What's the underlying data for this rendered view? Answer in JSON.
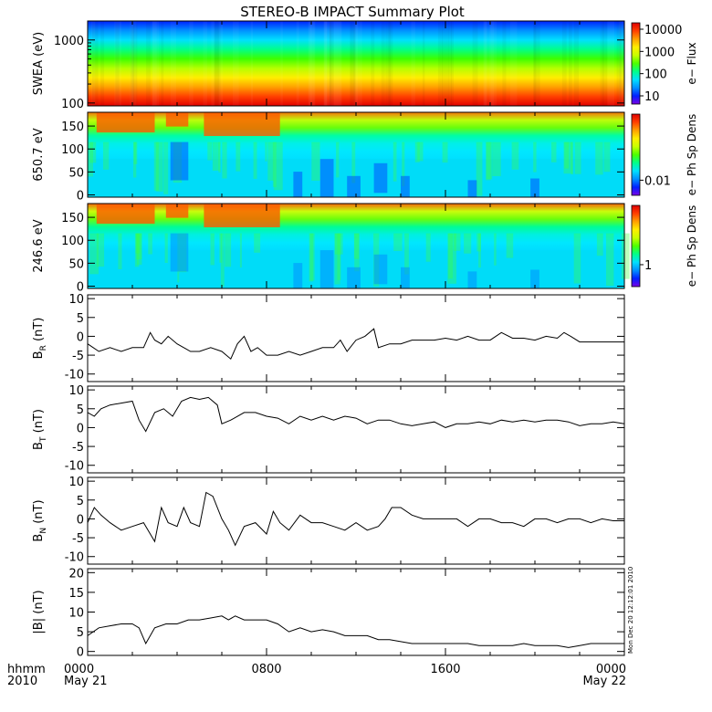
{
  "title": "STEREO-B IMPACT Summary Plot",
  "colors": {
    "colorbar": [
      "#7a00e6",
      "#0020ff",
      "#0090ff",
      "#00e0ff",
      "#00ff8a",
      "#4cff00",
      "#c8ff00",
      "#ffee00",
      "#ffa000",
      "#ff4000",
      "#e00000"
    ],
    "line": "#000000",
    "axis": "#000000"
  },
  "time_axis": {
    "title_line1": "hhmm",
    "title_line2": "2010",
    "ticks": [
      {
        "hour": 0,
        "label": "0000",
        "sublabel": "May 21"
      },
      {
        "hour": 8,
        "label": "0800",
        "sublabel": ""
      },
      {
        "hour": 16,
        "label": "1600",
        "sublabel": ""
      },
      {
        "hour": 24,
        "label": "0000",
        "sublabel": "May 22"
      }
    ],
    "range_hours": [
      0,
      24
    ]
  },
  "timestamp": "Mon Dec 20 12:12:01 2010",
  "chart_data": [
    {
      "type": "heatmap",
      "ylabel": "SWEA (eV)",
      "yscale": "log",
      "ylim": [
        90,
        2000
      ],
      "yticks": [
        "100",
        "1000"
      ],
      "colorbar_label": "e− Flux",
      "colorbar_ticks": [
        "10000",
        "1000",
        "100",
        "10"
      ]
    },
    {
      "type": "heatmap",
      "ylabel": "650.7 eV",
      "ylim": [
        -5,
        180
      ],
      "yticks": [
        "0",
        "50",
        "100",
        "150"
      ],
      "colorbar_label": "e− Ph Sp Dens",
      "colorbar_ticks": [
        "0.01"
      ]
    },
    {
      "type": "heatmap",
      "ylabel": "246.6 eV",
      "ylim": [
        -5,
        180
      ],
      "yticks": [
        "0",
        "50",
        "100",
        "150"
      ],
      "colorbar_label": "e− Ph Sp Dens",
      "colorbar_ticks": [
        "1"
      ]
    },
    {
      "type": "line",
      "ylabel": "B",
      "ylabel_sub": "R",
      "ylabel_unit": " (nT)",
      "ylim": [
        -12,
        11
      ],
      "yticks": [
        "10",
        "5",
        "0",
        "-5",
        "-10"
      ],
      "x": [
        0,
        0.5,
        1,
        1.5,
        2,
        2.5,
        2.8,
        3,
        3.3,
        3.6,
        4,
        4.3,
        4.6,
        5,
        5.5,
        6,
        6.4,
        6.7,
        7,
        7.3,
        7.6,
        8,
        8.5,
        9,
        9.5,
        10,
        10.5,
        11,
        11.3,
        11.6,
        12,
        12.4,
        12.8,
        13,
        13.5,
        14,
        14.5,
        15,
        15.5,
        16,
        16.5,
        17,
        17.5,
        18,
        18.5,
        19,
        19.5,
        20,
        20.5,
        21,
        21.3,
        21.6,
        22,
        22.5,
        23,
        23.5,
        24
      ],
      "y": [
        -2,
        -4,
        -3,
        -4,
        -3,
        -3,
        1,
        -1,
        -2,
        0,
        -2,
        -3,
        -4,
        -4,
        -3,
        -4,
        -6,
        -2,
        0,
        -4,
        -3,
        -5,
        -5,
        -4,
        -5,
        -4,
        -3,
        -3,
        -1,
        -4,
        -1,
        0,
        2,
        -3,
        -2,
        -2,
        -1,
        -1,
        -1,
        -0.5,
        -1,
        0,
        -1,
        -1,
        1,
        -0.5,
        -0.5,
        -1,
        0,
        -0.5,
        1,
        0,
        -1.5,
        -1.5,
        -1.5,
        -1.5,
        -1.5
      ]
    },
    {
      "type": "line",
      "ylabel": "B",
      "ylabel_sub": "T",
      "ylabel_unit": " (nT)",
      "ylim": [
        -12,
        11
      ],
      "yticks": [
        "10",
        "5",
        "0",
        "-5",
        "-10"
      ],
      "x": [
        0,
        0.3,
        0.6,
        1,
        1.5,
        2,
        2.3,
        2.6,
        3,
        3.4,
        3.8,
        4.2,
        4.6,
        5,
        5.4,
        5.8,
        6,
        6.4,
        7,
        7.5,
        8,
        8.5,
        9,
        9.5,
        10,
        10.5,
        11,
        11.5,
        12,
        12.5,
        13,
        13.5,
        14,
        14.5,
        15,
        15.5,
        16,
        16.5,
        17,
        17.5,
        18,
        18.5,
        19,
        19.5,
        20,
        20.5,
        21,
        21.5,
        22,
        22.5,
        23,
        23.5,
        24
      ],
      "y": [
        4,
        3,
        5,
        6,
        6.5,
        7,
        2,
        -1,
        4,
        5,
        3,
        7,
        8,
        7.5,
        8,
        6,
        1,
        2,
        4,
        4,
        3,
        2.5,
        1,
        3,
        2,
        3,
        2,
        3,
        2.5,
        1,
        2,
        2,
        1,
        0.5,
        1,
        1.5,
        0,
        1,
        1,
        1.5,
        1,
        2,
        1.5,
        2,
        1.5,
        2,
        2,
        1.5,
        0.5,
        1,
        1,
        1.5,
        1
      ]
    },
    {
      "type": "line",
      "ylabel": "B",
      "ylabel_sub": "N",
      "ylabel_unit": " (nT)",
      "ylim": [
        -12,
        11
      ],
      "yticks": [
        "10",
        "5",
        "0",
        "-5",
        "-10"
      ],
      "x": [
        0,
        0.3,
        0.6,
        1,
        1.5,
        2,
        2.5,
        3,
        3.3,
        3.6,
        4,
        4.3,
        4.6,
        5,
        5.3,
        5.6,
        6,
        6.3,
        6.6,
        7,
        7.5,
        8,
        8.3,
        8.6,
        9,
        9.5,
        10,
        10.5,
        11,
        11.5,
        12,
        12.5,
        13,
        13.3,
        13.6,
        14,
        14.5,
        15,
        15.5,
        16,
        16.5,
        17,
        17.5,
        18,
        18.5,
        19,
        19.5,
        20,
        20.5,
        21,
        21.5,
        22,
        22.5,
        23,
        23.5,
        24
      ],
      "y": [
        -1,
        3,
        1,
        -1,
        -3,
        -2,
        -1,
        -6,
        3,
        -1,
        -2,
        3,
        -1,
        -2,
        7,
        6,
        0,
        -3,
        -7,
        -2,
        -1,
        -4,
        2,
        -1,
        -3,
        1,
        -1,
        -1,
        -2,
        -3,
        -1,
        -3,
        -2,
        0,
        3,
        3,
        1,
        0,
        0,
        0,
        0,
        -2,
        0,
        0,
        -1,
        -1,
        -2,
        0,
        0,
        -1,
        0,
        0,
        -1,
        0,
        -0.5,
        -0.5
      ]
    },
    {
      "type": "line",
      "ylabel": "|B|",
      "ylabel_sub": "",
      "ylabel_unit": " (nT)",
      "ylim": [
        -1,
        21
      ],
      "yticks": [
        "20",
        "15",
        "10",
        "5",
        "0"
      ],
      "x": [
        0,
        0.5,
        1,
        1.5,
        2,
        2.3,
        2.6,
        3,
        3.5,
        4,
        4.5,
        5,
        5.5,
        6,
        6.3,
        6.6,
        7,
        7.5,
        8,
        8.5,
        9,
        9.5,
        10,
        10.5,
        11,
        11.5,
        12,
        12.5,
        13,
        13.5,
        14,
        14.5,
        15,
        15.5,
        16,
        16.5,
        17,
        17.5,
        18,
        18.5,
        19,
        19.5,
        20,
        20.5,
        21,
        21.5,
        22,
        22.5,
        23,
        23.5,
        24
      ],
      "y": [
        4,
        6,
        6.5,
        7,
        7,
        6,
        2,
        6,
        7,
        7,
        8,
        8,
        8.5,
        9,
        8,
        9,
        8,
        8,
        8,
        7,
        5,
        6,
        5,
        5.5,
        5,
        4,
        4,
        4,
        3,
        3,
        2.5,
        2,
        2,
        2,
        2,
        2,
        2,
        1.5,
        1.5,
        1.5,
        1.5,
        2,
        1.5,
        1.5,
        1.5,
        1,
        1.5,
        2,
        2,
        2,
        2
      ]
    }
  ]
}
